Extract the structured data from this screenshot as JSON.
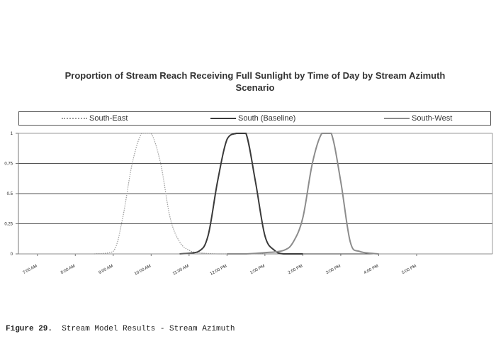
{
  "title_line1": "Proportion of Stream Reach Receiving Full Sunlight by Time of Day by Stream Azimuth",
  "title_line2": "Scenario",
  "caption": {
    "label": "Figure 29.",
    "text": "Stream Model Results - Stream Azimuth"
  },
  "chart_data": {
    "type": "line",
    "title": "Proportion of Stream Reach Receiving Full Sunlight by Time of Day by Stream Azimuth Scenario",
    "xlabel": "",
    "ylabel": "",
    "ylim": [
      0,
      1
    ],
    "xlim": [
      "6:30 AM",
      "7:00 PM"
    ],
    "y_ticks": [
      "0",
      "0.25",
      "0.5",
      "0.75",
      "1"
    ],
    "y_tick_values": [
      0,
      0.25,
      0.5,
      0.75,
      1
    ],
    "x_ticks": [
      "7:00 AM",
      "8:00 AM",
      "9:00 AM",
      "10:00 AM",
      "11:00 AM",
      "12:00 PM",
      "1:00 PM",
      "2:00 PM",
      "3:00 PM",
      "4:00 PM",
      "5:00 PM"
    ],
    "x_tick_hours": [
      7,
      8,
      9,
      10,
      11,
      12,
      13,
      14,
      15,
      16,
      17
    ],
    "grid": "horizontal",
    "legend_position": "top",
    "series": [
      {
        "name": "South-East",
        "color": "#9a9a9a",
        "style": "dotted",
        "x": [
          "8:30 AM",
          "9:00 AM",
          "9:15 AM",
          "9:30 AM",
          "9:45 AM",
          "10:00 AM",
          "10:15 AM",
          "10:30 AM",
          "10:45 AM",
          "11:00 AM",
          "11:15 AM",
          "11:45 AM",
          "12:00 PM",
          "12:30 PM",
          "1:00 PM",
          "2:00 PM"
        ],
        "y": [
          0,
          0.02,
          0.3,
          0.75,
          1,
          1,
          0.75,
          0.3,
          0.1,
          0.03,
          0.01,
          0,
          0,
          0,
          0,
          0
        ]
      },
      {
        "name": "South (Baseline)",
        "color": "#3a3a3a",
        "style": "solid",
        "x": [
          "10:45 AM",
          "11:15 AM",
          "11:30 AM",
          "11:45 AM",
          "12:00 PM",
          "12:15 PM",
          "12:30 PM",
          "12:45 PM",
          "1:00 PM",
          "1:15 PM",
          "1:30 PM",
          "2:00 PM"
        ],
        "y": [
          0,
          0.02,
          0.15,
          0.6,
          0.95,
          1,
          1,
          0.6,
          0.15,
          0.03,
          0,
          0
        ]
      },
      {
        "name": "South-West",
        "color": "#8c8c8c",
        "style": "solid",
        "x": [
          "12:00 PM",
          "12:30 PM",
          "1:00 PM",
          "1:30 PM",
          "1:45 PM",
          "2:00 PM",
          "2:15 PM",
          "2:30 PM",
          "2:45 PM",
          "3:00 PM",
          "3:15 PM",
          "3:30 PM",
          "4:00 PM"
        ],
        "y": [
          0,
          0,
          0.01,
          0.03,
          0.1,
          0.3,
          0.75,
          1,
          1,
          0.6,
          0.1,
          0.02,
          0
        ]
      }
    ]
  }
}
